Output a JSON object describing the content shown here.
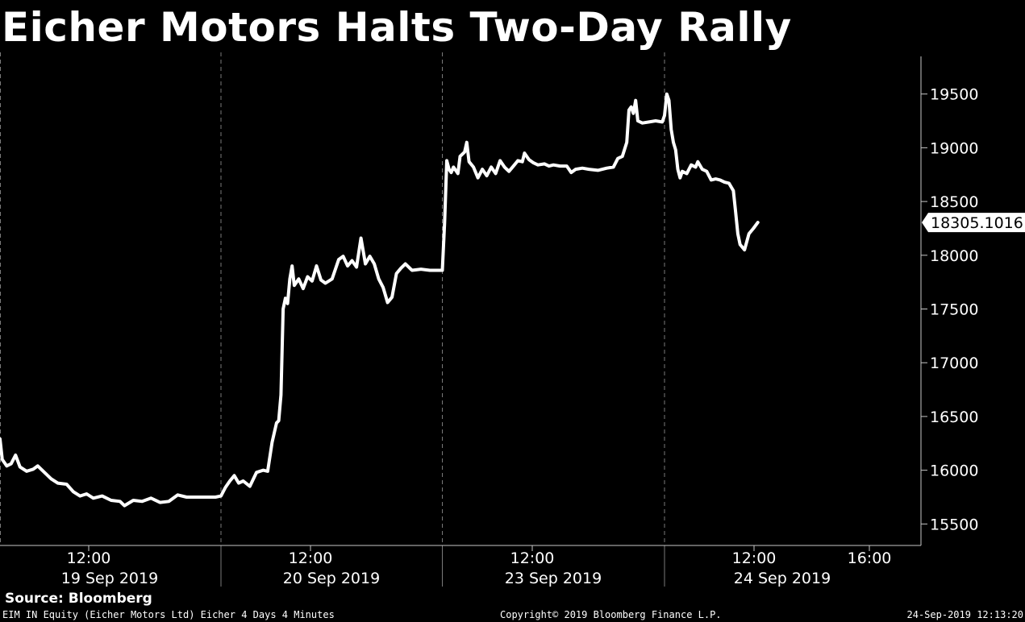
{
  "header": {
    "title": "Eicher Motors Halts Two-Day Rally"
  },
  "footer": {
    "source": "Source: Bloomberg",
    "left": "EIM IN Equity (Eicher Motors Ltd) Eicher 4 Days 4 Minutes",
    "center": "Copyright© 2019 Bloomberg Finance L.P.",
    "right": "24-Sep-2019 12:13:20"
  },
  "colors": {
    "background": "#000000",
    "line": "#ffffff",
    "grid": "#7a7a7a",
    "last_value_box": "#ffffff"
  },
  "chart_data": {
    "type": "line",
    "title": "Eicher Motors Halts Two-Day Rally",
    "xlabel": "",
    "ylabel": "",
    "ylim": [
      15300,
      19850
    ],
    "y_ticks": [
      15500,
      16000,
      16500,
      17000,
      17500,
      18000,
      18500,
      19000,
      19500
    ],
    "y_axis_side": "right",
    "grid": false,
    "session_separators": true,
    "last_value": "18305.1016",
    "x_ticks": [
      {
        "day": 0,
        "hour": 12,
        "time": "12:00",
        "date": "19 Sep 2019"
      },
      {
        "day": 1,
        "hour": 12,
        "time": "12:00",
        "date": "20 Sep 2019"
      },
      {
        "day": 2,
        "hour": 12,
        "time": "12:00",
        "date": "23 Sep 2019"
      },
      {
        "day": 3,
        "hour": 12,
        "time": "12:00",
        "date": "24 Sep 2019"
      },
      {
        "day": 3,
        "hour": 16,
        "time": "16:00",
        "date": ""
      }
    ],
    "x_unit": "trading session index (0 = 19 Sep 2019), intraday points given as fraction of session",
    "series": [
      {
        "values": [
          [
            0.0,
            16290
          ],
          [
            0.01,
            16100
          ],
          [
            0.03,
            16040
          ],
          [
            0.05,
            16060
          ],
          [
            0.07,
            16140
          ],
          [
            0.09,
            16030
          ],
          [
            0.12,
            15990
          ],
          [
            0.15,
            16010
          ],
          [
            0.17,
            16040
          ],
          [
            0.2,
            15980
          ],
          [
            0.23,
            15920
          ],
          [
            0.26,
            15880
          ],
          [
            0.3,
            15870
          ],
          [
            0.33,
            15800
          ],
          [
            0.36,
            15760
          ],
          [
            0.39,
            15780
          ],
          [
            0.42,
            15740
          ],
          [
            0.46,
            15760
          ],
          [
            0.5,
            15720
          ],
          [
            0.54,
            15710
          ],
          [
            0.56,
            15670
          ],
          [
            0.6,
            15720
          ],
          [
            0.64,
            15710
          ],
          [
            0.68,
            15740
          ],
          [
            0.72,
            15700
          ],
          [
            0.76,
            15710
          ],
          [
            0.8,
            15770
          ],
          [
            0.84,
            15750
          ],
          [
            0.9,
            15750
          ],
          [
            0.97,
            15750
          ],
          [
            1.0,
            15760
          ],
          [
            1.02,
            15840
          ],
          [
            1.04,
            15900
          ],
          [
            1.06,
            15950
          ],
          [
            1.08,
            15880
          ],
          [
            1.1,
            15900
          ],
          [
            1.13,
            15850
          ],
          [
            1.16,
            15980
          ],
          [
            1.19,
            16000
          ],
          [
            1.21,
            15990
          ],
          [
            1.23,
            16260
          ],
          [
            1.25,
            16440
          ],
          [
            1.26,
            16460
          ],
          [
            1.27,
            16700
          ],
          [
            1.28,
            17500
          ],
          [
            1.29,
            17600
          ],
          [
            1.3,
            17550
          ],
          [
            1.31,
            17780
          ],
          [
            1.32,
            17900
          ],
          [
            1.33,
            17720
          ],
          [
            1.35,
            17780
          ],
          [
            1.37,
            17690
          ],
          [
            1.39,
            17800
          ],
          [
            1.41,
            17760
          ],
          [
            1.43,
            17900
          ],
          [
            1.45,
            17770
          ],
          [
            1.47,
            17740
          ],
          [
            1.5,
            17780
          ],
          [
            1.53,
            17960
          ],
          [
            1.55,
            17990
          ],
          [
            1.57,
            17900
          ],
          [
            1.59,
            17950
          ],
          [
            1.61,
            17890
          ],
          [
            1.63,
            18160
          ],
          [
            1.65,
            17920
          ],
          [
            1.67,
            17990
          ],
          [
            1.69,
            17920
          ],
          [
            1.71,
            17780
          ],
          [
            1.73,
            17700
          ],
          [
            1.75,
            17560
          ],
          [
            1.77,
            17610
          ],
          [
            1.79,
            17830
          ],
          [
            1.81,
            17880
          ],
          [
            1.83,
            17920
          ],
          [
            1.86,
            17860
          ],
          [
            1.9,
            17870
          ],
          [
            1.94,
            17860
          ],
          [
            1.99,
            17860
          ],
          [
            2.0,
            17860
          ],
          [
            2.01,
            18300
          ],
          [
            2.02,
            18880
          ],
          [
            2.03,
            18800
          ],
          [
            2.04,
            18770
          ],
          [
            2.05,
            18820
          ],
          [
            2.07,
            18760
          ],
          [
            2.08,
            18920
          ],
          [
            2.1,
            18960
          ],
          [
            2.11,
            19050
          ],
          [
            2.12,
            18870
          ],
          [
            2.14,
            18820
          ],
          [
            2.16,
            18720
          ],
          [
            2.18,
            18800
          ],
          [
            2.2,
            18740
          ],
          [
            2.22,
            18820
          ],
          [
            2.24,
            18760
          ],
          [
            2.26,
            18880
          ],
          [
            2.28,
            18820
          ],
          [
            2.3,
            18780
          ],
          [
            2.32,
            18830
          ],
          [
            2.34,
            18880
          ],
          [
            2.36,
            18870
          ],
          [
            2.37,
            18950
          ],
          [
            2.39,
            18890
          ],
          [
            2.41,
            18860
          ],
          [
            2.43,
            18840
          ],
          [
            2.46,
            18850
          ],
          [
            2.48,
            18830
          ],
          [
            2.5,
            18840
          ],
          [
            2.53,
            18830
          ],
          [
            2.56,
            18830
          ],
          [
            2.58,
            18770
          ],
          [
            2.6,
            18800
          ],
          [
            2.63,
            18810
          ],
          [
            2.66,
            18800
          ],
          [
            2.7,
            18790
          ],
          [
            2.74,
            18810
          ],
          [
            2.77,
            18820
          ],
          [
            2.79,
            18900
          ],
          [
            2.81,
            18920
          ],
          [
            2.83,
            19050
          ],
          [
            2.84,
            19350
          ],
          [
            2.85,
            19380
          ],
          [
            2.86,
            19320
          ],
          [
            2.87,
            19440
          ],
          [
            2.88,
            19250
          ],
          [
            2.9,
            19230
          ],
          [
            2.93,
            19240
          ],
          [
            2.96,
            19250
          ],
          [
            2.99,
            19240
          ],
          [
            3.0,
            19300
          ],
          [
            3.01,
            19500
          ],
          [
            3.02,
            19440
          ],
          [
            3.03,
            19170
          ],
          [
            3.04,
            19050
          ],
          [
            3.05,
            18980
          ],
          [
            3.06,
            18800
          ],
          [
            3.07,
            18720
          ],
          [
            3.08,
            18780
          ],
          [
            3.1,
            18760
          ],
          [
            3.12,
            18840
          ],
          [
            3.14,
            18820
          ],
          [
            3.15,
            18870
          ],
          [
            3.17,
            18800
          ],
          [
            3.19,
            18780
          ],
          [
            3.21,
            18700
          ],
          [
            3.23,
            18710
          ],
          [
            3.25,
            18700
          ],
          [
            3.27,
            18680
          ],
          [
            3.29,
            18670
          ],
          [
            3.31,
            18600
          ],
          [
            3.32,
            18400
          ],
          [
            3.33,
            18200
          ],
          [
            3.34,
            18100
          ],
          [
            3.36,
            18050
          ],
          [
            3.38,
            18200
          ],
          [
            3.4,
            18250
          ],
          [
            3.42,
            18305.1016
          ]
        ]
      }
    ]
  }
}
